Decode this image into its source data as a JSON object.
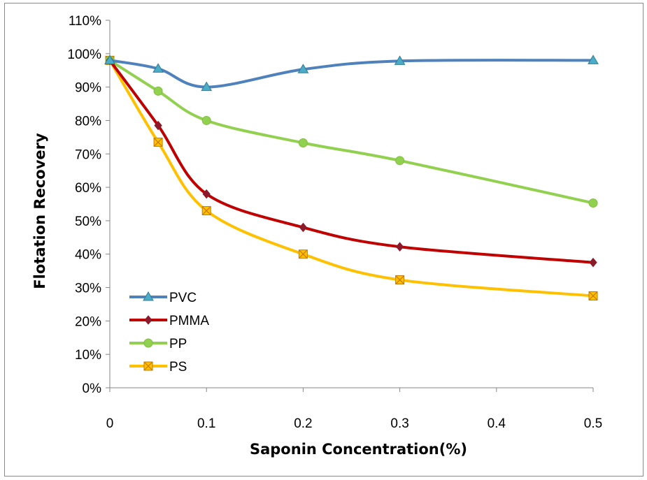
{
  "chart_data": {
    "type": "line",
    "title": "",
    "xlabel": "Saponin Concentration(%)",
    "ylabel": "Flotation Recovery",
    "xlim": [
      0,
      0.5
    ],
    "ylim": [
      0,
      1.1
    ],
    "x_ticks": [
      "0",
      "0.1",
      "0.2",
      "0.3",
      "0.4",
      "0.5"
    ],
    "x_tick_values": [
      0,
      0.1,
      0.2,
      0.3,
      0.4,
      0.5
    ],
    "y_ticks": [
      "0%",
      "10%",
      "20%",
      "30%",
      "40%",
      "50%",
      "60%",
      "70%",
      "80%",
      "90%",
      "100%",
      "110%"
    ],
    "y_tick_values": [
      0,
      0.1,
      0.2,
      0.3,
      0.4,
      0.5,
      0.6,
      0.7,
      0.8,
      0.9,
      1.0,
      1.1
    ],
    "grid": false,
    "legend_position": "bottom-left",
    "x": [
      0,
      0.05,
      0.1,
      0.2,
      0.3,
      0.5
    ],
    "series": [
      {
        "name": "PVC",
        "values": [
          0.98,
          0.955,
          0.9,
          0.953,
          0.978,
          0.98
        ],
        "color": "#4f81bd",
        "marker": "triangle"
      },
      {
        "name": "PMMA",
        "values": [
          0.98,
          0.785,
          0.58,
          0.48,
          0.422,
          0.375
        ],
        "color": "#c00000",
        "marker": "diamond"
      },
      {
        "name": "PP",
        "values": [
          0.98,
          0.888,
          0.8,
          0.733,
          0.68,
          0.553
        ],
        "color": "#92d050",
        "marker": "circle"
      },
      {
        "name": "PS",
        "values": [
          0.98,
          0.735,
          0.53,
          0.4,
          0.323,
          0.275
        ],
        "color": "#ffc000",
        "marker": "x-square"
      }
    ]
  }
}
